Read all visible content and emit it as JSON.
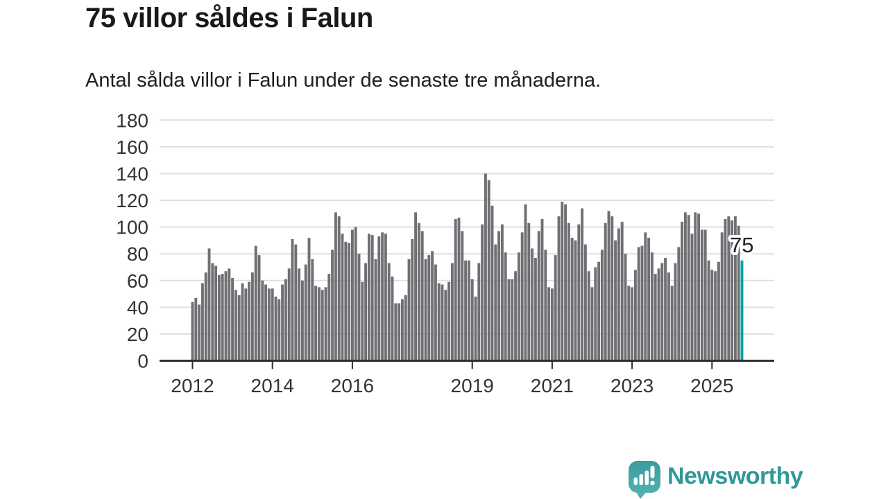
{
  "header": {
    "title": "75 villor såldes i Falun",
    "subtitle": "Antal sålda villor i Falun under de senaste tre månaderna."
  },
  "footer": {
    "brand": "Newsworthy"
  },
  "colors": {
    "bar": "#6f6f74",
    "highlight": "#00a2a2",
    "grid": "#dfdfdf",
    "axis": "#2e2e2e",
    "tick_label": "#333333",
    "title_text": "#191919",
    "brand_text": "#2f9899",
    "logo_bubble_top": "#3d9b9d",
    "logo_bubble_bottom": "#4db1ae",
    "callout_text": "#222222",
    "callout_halo": "#ffffff"
  },
  "chart_data": {
    "type": "bar",
    "title": "75 villor såldes i Falun",
    "subtitle": "Antal sålda villor i Falun under de senaste tre månaderna.",
    "xlabel": "",
    "ylabel": "",
    "ylim": [
      0,
      180
    ],
    "yticks": [
      0,
      20,
      40,
      60,
      80,
      100,
      120,
      140,
      160,
      180
    ],
    "grid": true,
    "legend": false,
    "frequency": "monthly",
    "x": [
      "2012-01",
      "2012-02",
      "2012-03",
      "2012-04",
      "2012-05",
      "2012-06",
      "2012-07",
      "2012-08",
      "2012-09",
      "2012-10",
      "2012-11",
      "2012-12",
      "2013-01",
      "2013-02",
      "2013-03",
      "2013-04",
      "2013-05",
      "2013-06",
      "2013-07",
      "2013-08",
      "2013-09",
      "2013-10",
      "2013-11",
      "2013-12",
      "2014-01",
      "2014-02",
      "2014-03",
      "2014-04",
      "2014-05",
      "2014-06",
      "2014-07",
      "2014-08",
      "2014-09",
      "2014-10",
      "2014-11",
      "2014-12",
      "2015-01",
      "2015-02",
      "2015-03",
      "2015-04",
      "2015-05",
      "2015-06",
      "2015-07",
      "2015-08",
      "2015-09",
      "2015-10",
      "2015-11",
      "2015-12",
      "2016-01",
      "2016-02",
      "2016-03",
      "2016-04",
      "2016-05",
      "2016-06",
      "2016-07",
      "2016-08",
      "2016-09",
      "2016-10",
      "2016-11",
      "2016-12",
      "2017-01",
      "2017-02",
      "2017-03",
      "2017-04",
      "2017-05",
      "2017-06",
      "2017-07",
      "2017-08",
      "2017-09",
      "2017-10",
      "2017-11",
      "2017-12",
      "2018-01",
      "2018-02",
      "2018-03",
      "2018-04",
      "2018-05",
      "2018-06",
      "2018-07",
      "2018-08",
      "2018-09",
      "2018-10",
      "2018-11",
      "2018-12",
      "2019-01",
      "2019-02",
      "2019-03",
      "2019-04",
      "2019-05",
      "2019-06",
      "2019-07",
      "2019-08",
      "2019-09",
      "2019-10",
      "2019-11",
      "2019-12",
      "2020-01",
      "2020-02",
      "2020-03",
      "2020-04",
      "2020-05",
      "2020-06",
      "2020-07",
      "2020-08",
      "2020-09",
      "2020-10",
      "2020-11",
      "2020-12",
      "2021-01",
      "2021-02",
      "2021-03",
      "2021-04",
      "2021-05",
      "2021-06",
      "2021-07",
      "2021-08",
      "2021-09",
      "2021-10",
      "2021-11",
      "2021-12",
      "2022-01",
      "2022-02",
      "2022-03",
      "2022-04",
      "2022-05",
      "2022-06",
      "2022-07",
      "2022-08",
      "2022-09",
      "2022-10",
      "2022-11",
      "2022-12",
      "2023-01",
      "2023-02",
      "2023-03",
      "2023-04",
      "2023-05",
      "2023-06",
      "2023-07",
      "2023-08",
      "2023-09",
      "2023-10",
      "2023-11",
      "2023-12",
      "2024-01",
      "2024-02",
      "2024-03",
      "2024-04",
      "2024-05",
      "2024-06",
      "2024-07",
      "2024-08",
      "2024-09",
      "2024-10",
      "2024-11",
      "2024-12",
      "2025-01",
      "2025-02",
      "2025-03",
      "2025-04",
      "2025-05",
      "2025-06",
      "2025-07",
      "2025-08",
      "2025-09",
      "2025-10"
    ],
    "values": [
      44,
      47,
      42,
      58,
      66,
      84,
      73,
      71,
      64,
      65,
      67,
      69,
      62,
      53,
      49,
      58,
      54,
      59,
      66,
      86,
      79,
      60,
      57,
      54,
      54,
      48,
      46,
      57,
      61,
      69,
      91,
      87,
      69,
      60,
      72,
      92,
      76,
      56,
      55,
      53,
      55,
      65,
      83,
      111,
      108,
      95,
      89,
      88,
      98,
      100,
      80,
      59,
      73,
      95,
      94,
      76,
      93,
      96,
      95,
      73,
      63,
      43,
      43,
      46,
      49,
      76,
      91,
      111,
      103,
      97,
      76,
      79,
      82,
      72,
      58,
      57,
      53,
      59,
      73,
      106,
      107,
      97,
      75,
      75,
      61,
      48,
      73,
      102,
      140,
      135,
      116,
      87,
      97,
      102,
      81,
      61,
      61,
      67,
      81,
      96,
      117,
      103,
      84,
      77,
      97,
      106,
      83,
      55,
      54,
      79,
      108,
      119,
      117,
      103,
      92,
      90,
      102,
      114,
      87,
      67,
      55,
      70,
      74,
      83,
      103,
      112,
      108,
      90,
      99,
      104,
      80,
      56,
      55,
      68,
      85,
      86,
      96,
      92,
      81,
      65,
      69,
      73,
      77,
      66,
      56,
      73,
      85,
      104,
      111,
      109,
      95,
      111,
      110,
      98,
      98,
      75,
      68,
      67,
      74,
      96,
      106,
      108,
      105,
      108,
      101,
      75
    ],
    "xticks": [
      {
        "label": "2012",
        "month_index": 0
      },
      {
        "label": "2014",
        "month_index": 24
      },
      {
        "label": "2016",
        "month_index": 48
      },
      {
        "label": "2019",
        "month_index": 84
      },
      {
        "label": "2021",
        "month_index": 108
      },
      {
        "label": "2023",
        "month_index": 132
      },
      {
        "label": "2025",
        "month_index": 156
      }
    ],
    "highlight": {
      "index": 165,
      "value": 75,
      "label": "75"
    }
  }
}
